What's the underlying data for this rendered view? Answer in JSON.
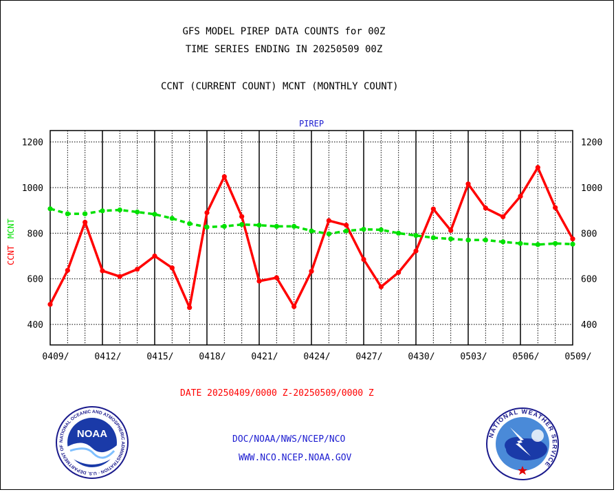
{
  "titles": {
    "line1": "GFS MODEL PIREP DATA COUNTS for 00Z",
    "line2": "TIME SERIES ENDING IN 20250509 00Z",
    "line3": "CCNT (CURRENT COUNT) MCNT (MONTHLY COUNT)"
  },
  "footer": {
    "date_range": "DATE 20250409/0000 Z-20250509/0000 Z",
    "credit_1": "DOC/NOAA/NWS/NCEP/NCO",
    "credit_2": "WWW.NCO.NCEP.NOAA.GOV"
  },
  "logos": {
    "left": {
      "icon": "noaa-logo",
      "text": "NOAA",
      "ring_text": "NATIONAL OCEANIC AND ATMOSPHERIC ADMINISTRATION · U.S. DEPARTMENT OF COMMERCE"
    },
    "right": {
      "icon": "nws-logo",
      "ring_text": "NATIONAL WEATHER SERVICE"
    }
  },
  "colors": {
    "ccnt": "#ff0000",
    "mcnt": "#00e000",
    "panel_title": "#1a1ad0",
    "footer_date": "#ff0000",
    "credits": "#1a1ad0"
  },
  "chart_data": {
    "type": "line",
    "title": "PIREP",
    "ylabel_parts": [
      {
        "text": "CCNT",
        "color": "#ff0000"
      },
      {
        "text": "MCNT",
        "color": "#00e000"
      }
    ],
    "ylim": [
      310,
      1250
    ],
    "yticks": [
      400,
      600,
      800,
      1000,
      1200
    ],
    "ytick_labels": [
      "400",
      "600",
      "800",
      "1000",
      "1200"
    ],
    "x": [
      "0409",
      "0410",
      "0411",
      "0412",
      "0413",
      "0414",
      "0415",
      "0416",
      "0417",
      "0418",
      "0419",
      "0420",
      "0421",
      "0422",
      "0423",
      "0424",
      "0425",
      "0426",
      "0427",
      "0428",
      "0429",
      "0430",
      "0501",
      "0502",
      "0503",
      "0504",
      "0505",
      "0506",
      "0507",
      "0508",
      "0509"
    ],
    "xtick_labels": [
      "0409/",
      "0412/",
      "0415/",
      "0418/",
      "0421/",
      "0424/",
      "0427/",
      "0430/",
      "0503/",
      "0506/",
      "0509/"
    ],
    "xtick_positions": [
      "0409",
      "0412",
      "0415",
      "0418",
      "0421",
      "0424",
      "0427",
      "0430",
      "0503",
      "0506",
      "0509"
    ],
    "grid": true,
    "series": [
      {
        "name": "CCNT",
        "style": "solid",
        "color": "#ff0000",
        "values": [
          488,
          637,
          848,
          635,
          610,
          642,
          700,
          648,
          474,
          890,
          1048,
          873,
          590,
          605,
          478,
          633,
          855,
          835,
          685,
          565,
          628,
          722,
          906,
          812,
          1016,
          910,
          872,
          962,
          1088,
          912,
          775
        ]
      },
      {
        "name": "MCNT",
        "style": "dashed",
        "color": "#00e000",
        "values": [
          907,
          885,
          885,
          898,
          902,
          893,
          883,
          865,
          842,
          827,
          830,
          838,
          835,
          830,
          830,
          810,
          797,
          810,
          817,
          815,
          800,
          790,
          780,
          775,
          770,
          770,
          762,
          755,
          750,
          755,
          752
        ]
      }
    ]
  }
}
